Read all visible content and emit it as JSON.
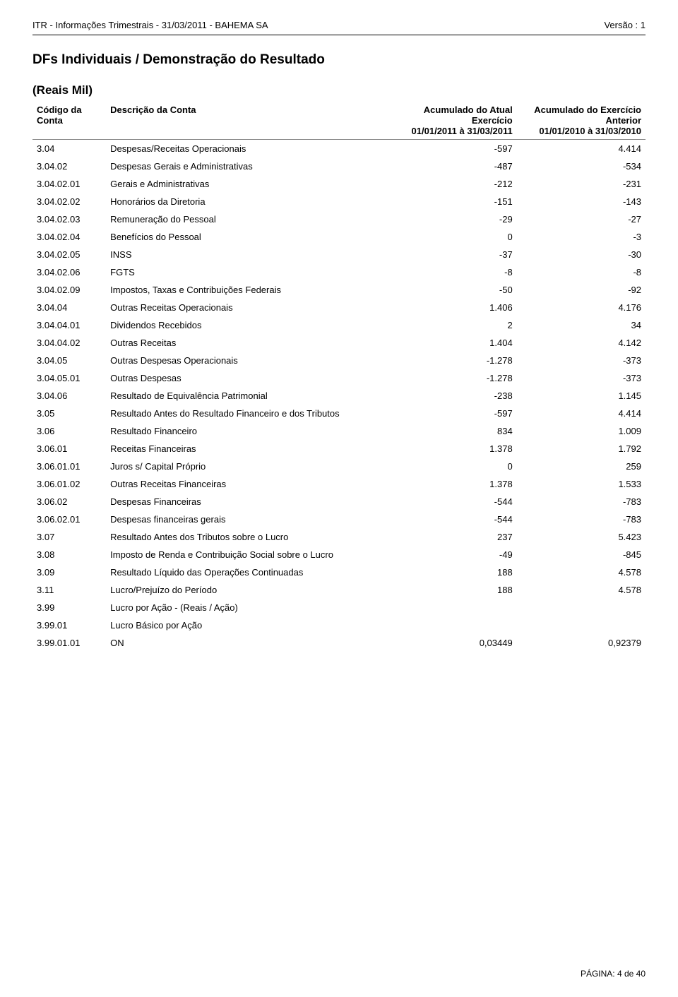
{
  "header": {
    "left": "ITR - Informações Trimestrais - 31/03/2011 - BAHEMA SA",
    "right": "Versão : 1"
  },
  "section_title": "DFs Individuais / Demonstração do Resultado",
  "reais_label": "(Reais Mil)",
  "columns": {
    "c1": "Código da Conta",
    "c2": "Descrição da Conta",
    "c3_line1": "Acumulado do Atual",
    "c3_line2": "Exercício",
    "c3_line3": "01/01/2011 à 31/03/2011",
    "c4_line1": "Acumulado do Exercício",
    "c4_line2": "Anterior",
    "c4_line3": "01/01/2010 à 31/03/2010"
  },
  "rows": [
    {
      "code": "3.04",
      "desc": "Despesas/Receitas Operacionais",
      "v1": "-597",
      "v2": "4.414"
    },
    {
      "code": "3.04.02",
      "desc": "Despesas Gerais e Administrativas",
      "v1": "-487",
      "v2": "-534"
    },
    {
      "code": "3.04.02.01",
      "desc": "Gerais e Administrativas",
      "v1": "-212",
      "v2": "-231"
    },
    {
      "code": "3.04.02.02",
      "desc": "Honorários da Diretoria",
      "v1": "-151",
      "v2": "-143"
    },
    {
      "code": "3.04.02.03",
      "desc": "Remuneração do Pessoal",
      "v1": "-29",
      "v2": "-27"
    },
    {
      "code": "3.04.02.04",
      "desc": "Benefícios do Pessoal",
      "v1": "0",
      "v2": "-3"
    },
    {
      "code": "3.04.02.05",
      "desc": "INSS",
      "v1": "-37",
      "v2": "-30"
    },
    {
      "code": "3.04.02.06",
      "desc": "FGTS",
      "v1": "-8",
      "v2": "-8"
    },
    {
      "code": "3.04.02.09",
      "desc": "Impostos, Taxas e Contribuições Federais",
      "v1": "-50",
      "v2": "-92"
    },
    {
      "code": "3.04.04",
      "desc": "Outras Receitas Operacionais",
      "v1": "1.406",
      "v2": "4.176"
    },
    {
      "code": "3.04.04.01",
      "desc": "Dividendos Recebidos",
      "v1": "2",
      "v2": "34"
    },
    {
      "code": "3.04.04.02",
      "desc": "Outras Receitas",
      "v1": "1.404",
      "v2": "4.142"
    },
    {
      "code": "3.04.05",
      "desc": "Outras Despesas Operacionais",
      "v1": "-1.278",
      "v2": "-373"
    },
    {
      "code": "3.04.05.01",
      "desc": "Outras Despesas",
      "v1": "-1.278",
      "v2": "-373"
    },
    {
      "code": "3.04.06",
      "desc": "Resultado de Equivalência Patrimonial",
      "v1": "-238",
      "v2": "1.145"
    },
    {
      "code": "3.05",
      "desc": "Resultado Antes do Resultado Financeiro e dos Tributos",
      "v1": "-597",
      "v2": "4.414"
    },
    {
      "code": "3.06",
      "desc": "Resultado Financeiro",
      "v1": "834",
      "v2": "1.009"
    },
    {
      "code": "3.06.01",
      "desc": "Receitas Financeiras",
      "v1": "1.378",
      "v2": "1.792"
    },
    {
      "code": "3.06.01.01",
      "desc": "Juros s/ Capital Próprio",
      "v1": "0",
      "v2": "259"
    },
    {
      "code": "3.06.01.02",
      "desc": "Outras Receitas Financeiras",
      "v1": "1.378",
      "v2": "1.533"
    },
    {
      "code": "3.06.02",
      "desc": "Despesas Financeiras",
      "v1": "-544",
      "v2": "-783"
    },
    {
      "code": "3.06.02.01",
      "desc": "Despesas financeiras gerais",
      "v1": "-544",
      "v2": "-783"
    },
    {
      "code": "3.07",
      "desc": "Resultado Antes dos Tributos sobre o Lucro",
      "v1": "237",
      "v2": "5.423"
    },
    {
      "code": "3.08",
      "desc": "Imposto de Renda e Contribuição Social sobre o Lucro",
      "v1": "-49",
      "v2": "-845"
    },
    {
      "code": "3.09",
      "desc": "Resultado Líquido das Operações Continuadas",
      "v1": "188",
      "v2": "4.578"
    },
    {
      "code": "3.11",
      "desc": "Lucro/Prejuízo do Período",
      "v1": "188",
      "v2": "4.578"
    },
    {
      "code": "3.99",
      "desc": "Lucro por Ação - (Reais / Ação)",
      "v1": "",
      "v2": ""
    },
    {
      "code": "3.99.01",
      "desc": "Lucro Básico por Ação",
      "v1": "",
      "v2": ""
    },
    {
      "code": "3.99.01.01",
      "desc": "ON",
      "v1": "0,03449",
      "v2": "0,92379"
    }
  ],
  "footer": "PÁGINA: 4 de 40"
}
